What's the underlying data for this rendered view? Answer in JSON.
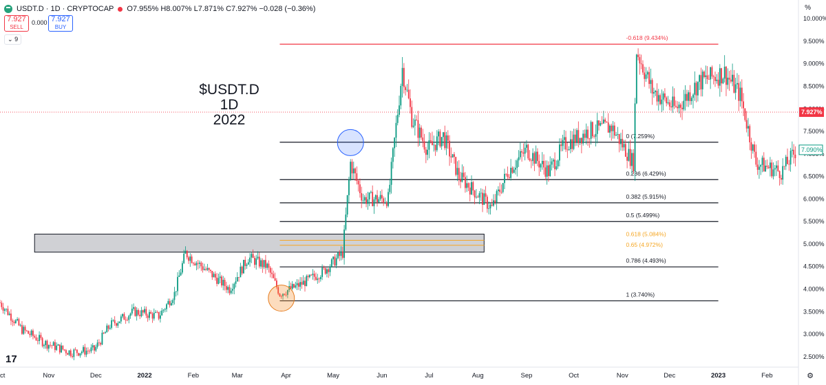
{
  "header": {
    "symbol": "USDT.D · 1D · CRYPTOCAP",
    "ohlc_label": "O7.955% H8.007% L7.871% C7.927% −0.028 (−0.36%)"
  },
  "trade": {
    "sell_price": "7.927",
    "sell_label": "SELL",
    "spread": "0.000",
    "buy_price": "7.927",
    "buy_label": "BUY"
  },
  "collapse_label": "9",
  "annotation_title": [
    "$USDT.D 1D",
    "2022"
  ],
  "percent_sign": "%",
  "colors": {
    "up": "#089981",
    "down": "#f23645",
    "fib_line": "#131722",
    "fib_golden": "#f5a623",
    "top_line": "#f23645"
  },
  "chart_data": {
    "type": "candlestick",
    "ylim": [
      2.3,
      10.2
    ],
    "y_ticks": [
      "10.000%",
      "9.500%",
      "9.000%",
      "8.500%",
      "8.000%",
      "7.500%",
      "7.000%",
      "6.500%",
      "6.000%",
      "5.500%",
      "5.000%",
      "4.500%",
      "4.000%",
      "3.500%",
      "3.000%",
      "2.500%"
    ],
    "y_tick_values": [
      10.0,
      9.5,
      9.0,
      8.5,
      8.0,
      7.5,
      7.0,
      6.5,
      6.0,
      5.5,
      5.0,
      4.5,
      4.0,
      3.5,
      3.0,
      2.5
    ],
    "x_labels": [
      "Oct",
      "Nov",
      "Dec",
      "2022",
      "Feb",
      "Mar",
      "Apr",
      "May",
      "Jun",
      "Jul",
      "Aug",
      "Sep",
      "Oct",
      "Nov",
      "Dec",
      "2023",
      "Feb"
    ],
    "x_label_dates": [
      "2021-10-01",
      "2021-11-01",
      "2021-12-01",
      "2022-01-01",
      "2022-02-01",
      "2022-03-01",
      "2022-04-01",
      "2022-05-01",
      "2022-06-01",
      "2022-07-01",
      "2022-08-01",
      "2022-09-01",
      "2022-10-01",
      "2022-11-01",
      "2022-12-01",
      "2023-01-01",
      "2023-02-01"
    ],
    "x_range": [
      "2021-10-01",
      "2023-02-21"
    ],
    "current_price": {
      "value": 7.927,
      "label": "7.927%"
    },
    "second_price": {
      "value": 7.09,
      "label": "7.090%"
    },
    "price_path": [
      [
        "2021-10-01",
        3.7
      ],
      [
        "2021-10-15",
        3.1
      ],
      [
        "2021-10-30",
        2.8
      ],
      [
        "2021-11-15",
        2.6
      ],
      [
        "2021-11-30",
        2.65
      ],
      [
        "2021-12-10",
        3.2
      ],
      [
        "2021-12-25",
        3.5
      ],
      [
        "2022-01-10",
        3.4
      ],
      [
        "2022-01-20",
        3.9
      ],
      [
        "2022-01-27",
        4.8
      ],
      [
        "2022-02-10",
        4.4
      ],
      [
        "2022-02-24",
        4.0
      ],
      [
        "2022-03-08",
        4.7
      ],
      [
        "2022-03-20",
        4.5
      ],
      [
        "2022-03-28",
        3.9
      ],
      [
        "2022-04-10",
        4.1
      ],
      [
        "2022-04-25",
        4.4
      ],
      [
        "2022-05-07",
        4.8
      ],
      [
        "2022-05-12",
        6.8
      ],
      [
        "2022-05-20",
        6.0
      ],
      [
        "2022-06-05",
        6.0
      ],
      [
        "2022-06-14",
        8.9
      ],
      [
        "2022-06-20",
        7.8
      ],
      [
        "2022-06-30",
        7.1
      ],
      [
        "2022-07-10",
        7.4
      ],
      [
        "2022-07-20",
        6.5
      ],
      [
        "2022-08-10",
        5.8
      ],
      [
        "2022-08-20",
        6.6
      ],
      [
        "2022-09-01",
        7.1
      ],
      [
        "2022-09-15",
        6.6
      ],
      [
        "2022-09-25",
        7.2
      ],
      [
        "2022-10-10",
        7.5
      ],
      [
        "2022-10-25",
        7.6
      ],
      [
        "2022-11-08",
        6.8
      ],
      [
        "2022-11-10",
        9.3
      ],
      [
        "2022-11-20",
        8.4
      ],
      [
        "2022-12-05",
        8.0
      ],
      [
        "2022-12-20",
        8.6
      ],
      [
        "2023-01-05",
        8.8
      ],
      [
        "2023-01-15",
        8.3
      ],
      [
        "2023-01-25",
        6.8
      ],
      [
        "2023-02-10",
        6.6
      ],
      [
        "2023-02-20",
        7.1
      ]
    ],
    "fib_levels": [
      {
        "level": "-0.618 (9.434%)",
        "value": 9.434,
        "color": "top"
      },
      {
        "level": "0 (7.259%)",
        "value": 7.259,
        "color": "line"
      },
      {
        "level": "0.236 (6.429%)",
        "value": 6.429,
        "color": "line"
      },
      {
        "level": "0.382 (5.915%)",
        "value": 5.915,
        "color": "line"
      },
      {
        "level": "0.5 (5.499%)",
        "value": 5.499,
        "color": "line"
      },
      {
        "level": "0.618 (5.084%)",
        "value": 5.084,
        "color": "golden"
      },
      {
        "level": "0.65 (4.972%)",
        "value": 4.972,
        "color": "golden"
      },
      {
        "level": "0.786 (4.493%)",
        "value": 4.493,
        "color": "line"
      },
      {
        "level": "1 (3.740%)",
        "value": 3.74,
        "color": "line"
      }
    ],
    "fib_start": "2022-03-28",
    "fib_end": "2023-01-01",
    "fib_golden_end": "2022-08-05",
    "zone": {
      "from": "2021-10-23",
      "to": "2022-08-05",
      "top": 5.22,
      "bottom": 4.82
    },
    "circles": [
      {
        "date": "2022-05-12",
        "value": 7.25,
        "fill": "rgba(41,98,255,0.18)",
        "stroke": "#2962ff"
      },
      {
        "date": "2022-03-29",
        "value": 3.8,
        "fill": "rgba(245,140,40,0.30)",
        "stroke": "#e57c1f"
      }
    ]
  }
}
